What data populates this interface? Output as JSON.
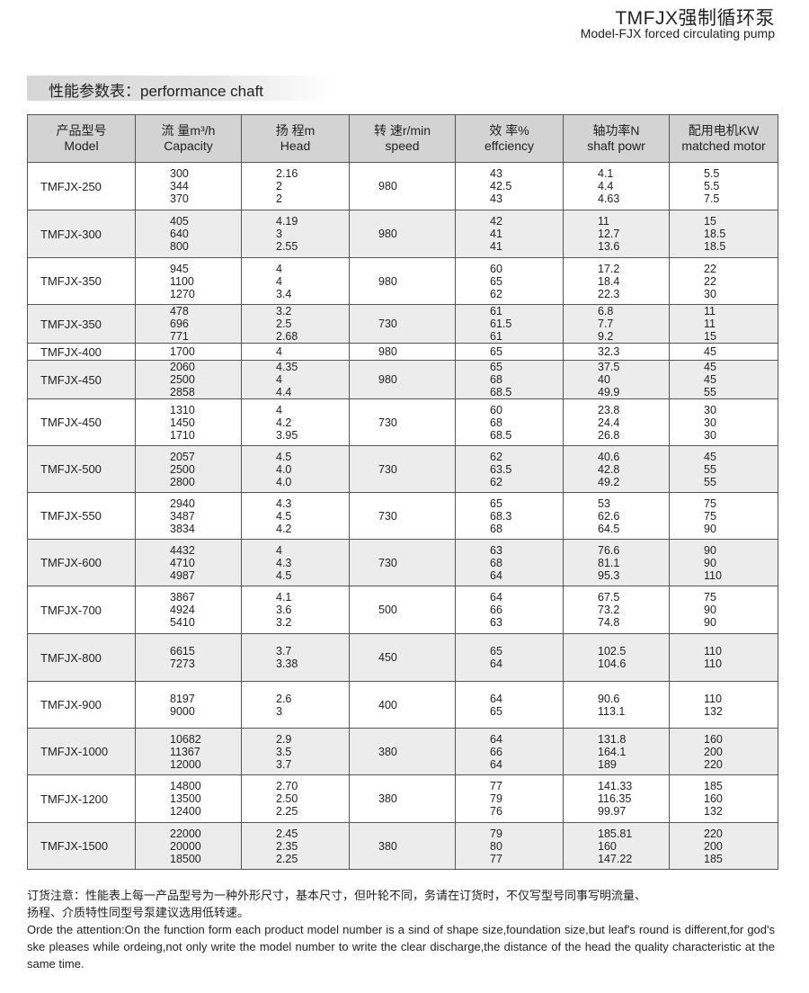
{
  "header": {
    "title_cn": "TMFJX强制循环泵",
    "title_en": "Model-FJX forced circulating pump"
  },
  "section_title": "性能参数表：performance chaft",
  "table": {
    "columns": [
      {
        "cn": "产品型号",
        "en": "Model"
      },
      {
        "cn": "流 量m³/h",
        "en": "Capacity"
      },
      {
        "cn": "扬 程m",
        "en": "Head"
      },
      {
        "cn": "转 速r/min",
        "en": "speed"
      },
      {
        "cn": "效 率%",
        "en": "effciency"
      },
      {
        "cn": "轴功率N",
        "en": "shaft powr"
      },
      {
        "cn": "配用电机KW",
        "en": "matched motor"
      }
    ],
    "rows": [
      {
        "model": "TMFJX-250",
        "capacity": [
          "300",
          "344",
          "370"
        ],
        "head": [
          "2.16",
          "2",
          "2"
        ],
        "speed": "980",
        "efficiency": [
          "43",
          "42.5",
          "43"
        ],
        "shaft_power": [
          "4.1",
          "4.4",
          "4.63"
        ],
        "motor": [
          "5.5",
          "5.5",
          "7.5"
        ]
      },
      {
        "model": "TMFJX-300",
        "capacity": [
          "405",
          "640",
          "800"
        ],
        "head": [
          "4.19",
          "3",
          "2.55"
        ],
        "speed": "980",
        "efficiency": [
          "42",
          "41",
          "41"
        ],
        "shaft_power": [
          "11",
          "12.7",
          "13.6"
        ],
        "motor": [
          "15",
          "18.5",
          "18.5"
        ]
      },
      {
        "model": "TMFJX-350",
        "capacity": [
          "945",
          "1100",
          "1270"
        ],
        "head": [
          "4",
          "4",
          "3.4"
        ],
        "speed": "980",
        "efficiency": [
          "60",
          "65",
          "62"
        ],
        "shaft_power": [
          "17.2",
          "18.4",
          "22.3"
        ],
        "motor": [
          "22",
          "22",
          "30"
        ]
      },
      {
        "model": "TMFJX-350",
        "capacity": [
          "478",
          "696",
          "771"
        ],
        "head": [
          "3.2",
          "2.5",
          "2.68"
        ],
        "speed": "730",
        "efficiency": [
          "61",
          "61.5",
          "61"
        ],
        "shaft_power": [
          "6.8",
          "7.7",
          "9.2"
        ],
        "motor": [
          "11",
          "11",
          "15"
        ]
      },
      {
        "model": "TMFJX-400",
        "capacity": [
          "1700"
        ],
        "head": [
          "4"
        ],
        "speed": "980",
        "efficiency": [
          "65"
        ],
        "shaft_power": [
          "32.3"
        ],
        "motor": [
          "45"
        ]
      },
      {
        "model": "TMFJX-450",
        "capacity": [
          "2060",
          "2500",
          "2858"
        ],
        "head": [
          "4.35",
          "4",
          "4.4"
        ],
        "speed": "980",
        "efficiency": [
          "65",
          "68",
          "68.5"
        ],
        "shaft_power": [
          "37.5",
          "40",
          "49.9"
        ],
        "motor": [
          "45",
          "45",
          "55"
        ]
      },
      {
        "model": "TMFJX-450",
        "capacity": [
          "1310",
          "1450",
          "1710"
        ],
        "head": [
          "4",
          "4.2",
          "3.95"
        ],
        "speed": "730",
        "efficiency": [
          "60",
          "68",
          "68.5"
        ],
        "shaft_power": [
          "23.8",
          "24.4",
          "26.8"
        ],
        "motor": [
          "30",
          "30",
          "30"
        ]
      },
      {
        "model": "TMFJX-500",
        "capacity": [
          "2057",
          "2500",
          "2800"
        ],
        "head": [
          "4.5",
          "4.0",
          "4.0"
        ],
        "speed": "730",
        "efficiency": [
          "62",
          "63.5",
          "62"
        ],
        "shaft_power": [
          "40.6",
          "42.8",
          "49.2"
        ],
        "motor": [
          "45",
          "55",
          "55"
        ]
      },
      {
        "model": "TMFJX-550",
        "capacity": [
          "2940",
          "3487",
          "3834"
        ],
        "head": [
          "4.3",
          "4.5",
          "4.2"
        ],
        "speed": "730",
        "efficiency": [
          "65",
          "68.3",
          "68"
        ],
        "shaft_power": [
          "53",
          "62.6",
          "64.5"
        ],
        "motor": [
          "75",
          "75",
          "90"
        ]
      },
      {
        "model": "TMFJX-600",
        "capacity": [
          "4432",
          "4710",
          "4987"
        ],
        "head": [
          "4",
          "4.3",
          "4.5"
        ],
        "speed": "730",
        "efficiency": [
          "63",
          "68",
          "64"
        ],
        "shaft_power": [
          "76.6",
          "81.1",
          "95.3"
        ],
        "motor": [
          "90",
          "90",
          "110"
        ]
      },
      {
        "model": "TMFJX-700",
        "capacity": [
          "3867",
          "4924",
          "5410"
        ],
        "head": [
          "4.1",
          "3.6",
          "3.2"
        ],
        "speed": "500",
        "efficiency": [
          "64",
          "66",
          "63"
        ],
        "shaft_power": [
          "67.5",
          "73.2",
          "74.8"
        ],
        "motor": [
          "75",
          "90",
          "90"
        ]
      },
      {
        "model": "TMFJX-800",
        "capacity": [
          "6615",
          "7273"
        ],
        "head": [
          "3.7",
          "3.38"
        ],
        "speed": "450",
        "efficiency": [
          "65",
          "64"
        ],
        "shaft_power": [
          "102.5",
          "104.6"
        ],
        "motor": [
          "110",
          "110"
        ]
      },
      {
        "model": "TMFJX-900",
        "capacity": [
          "8197",
          "9000"
        ],
        "head": [
          "2.6",
          "3"
        ],
        "speed": "400",
        "efficiency": [
          "64",
          "65"
        ],
        "shaft_power": [
          "90.6",
          "113.1"
        ],
        "motor": [
          "110",
          "132"
        ]
      },
      {
        "model": "TMFJX-1000",
        "capacity": [
          "10682",
          "11367",
          "12000"
        ],
        "head": [
          "2.9",
          "3.5",
          "3.7"
        ],
        "speed": "380",
        "efficiency": [
          "64",
          "66",
          "64"
        ],
        "shaft_power": [
          "131.8",
          "164.1",
          "189"
        ],
        "motor": [
          "160",
          "200",
          "220"
        ]
      },
      {
        "model": "TMFJX-1200",
        "capacity": [
          "14800",
          "13500",
          "12400"
        ],
        "head": [
          "2.70",
          "2.50",
          "2.25"
        ],
        "speed": "380",
        "efficiency": [
          "77",
          "79",
          "76"
        ],
        "shaft_power": [
          "141.33",
          "116.35",
          "99.97"
        ],
        "motor": [
          "185",
          "160",
          "132"
        ]
      },
      {
        "model": "TMFJX-1500",
        "capacity": [
          "22000",
          "20000",
          "18500"
        ],
        "head": [
          "2.45",
          "2.35",
          "2.25"
        ],
        "speed": "380",
        "efficiency": [
          "79",
          "80",
          "77"
        ],
        "shaft_power": [
          "185.81",
          "160",
          "147.22"
        ],
        "motor": [
          "220",
          "200",
          "185"
        ]
      }
    ]
  },
  "note": {
    "cn_line1": "订货注意：性能表上每一产品型号为一种外形尺寸，基本尺寸，但叶轮不同，务请在订货时，不仅写型号同事写明流量、",
    "cn_line2": "扬程、介质特性同型号泵建议选用低转速。",
    "en": "Orde the attention:On the function form each product model number is a sind of shape size,foundation size,but leaf's round is different,for god's ske pleases while ordeing,not only write the model number to write the clear discharge,the distance of the head the quality characteristic at the same time."
  }
}
